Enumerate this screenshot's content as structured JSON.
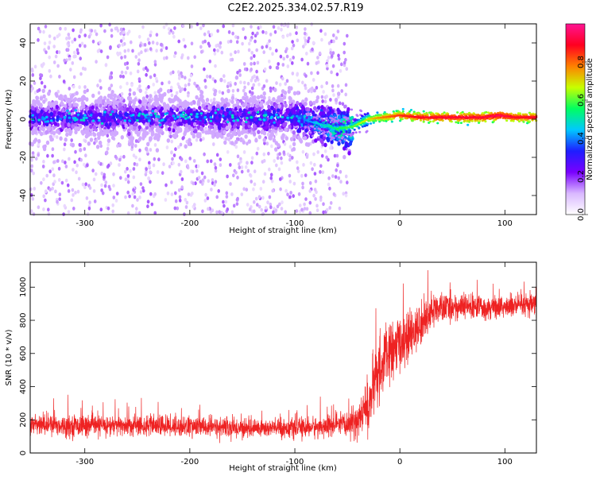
{
  "title": "C2E2.2025.334.02.57.R19",
  "chart_data": [
    {
      "type": "heatmap",
      "xlabel": "Height of straight line (km)",
      "ylabel": "Frequency (Hz)",
      "xlim": [
        -352,
        130
      ],
      "ylim": [
        -50,
        50
      ],
      "xticks": [
        -300,
        -200,
        -100,
        0,
        100
      ],
      "yticks": [
        -40,
        -20,
        0,
        20,
        40
      ],
      "colorbar": {
        "label": "Normalized spectral amplitude",
        "range": [
          0,
          1
        ],
        "ticks": [
          0.0,
          0.2,
          0.4,
          0.6,
          0.8
        ],
        "colors": [
          "#ffffff",
          "#d9b8ff",
          "#7a00ff",
          "#1e1eff",
          "#00c8ff",
          "#00ff60",
          "#c8ff00",
          "#ff8000",
          "#ff0020",
          "#ff1493"
        ]
      },
      "ridge": {
        "x": [
          -352,
          -300,
          -200,
          -100,
          -80,
          -60,
          -45,
          -30,
          -15,
          0,
          20,
          50,
          80,
          95,
          110,
          130
        ],
        "frequency": [
          1,
          1,
          1,
          1,
          -2,
          -5,
          -4,
          0,
          1,
          2,
          1,
          1,
          1,
          2,
          1,
          1
        ],
        "amplitude": [
          0.3,
          0.3,
          0.3,
          0.35,
          0.45,
          0.55,
          0.6,
          0.7,
          0.8,
          0.85,
          0.9,
          0.92,
          0.92,
          0.95,
          0.9,
          0.9
        ]
      }
    },
    {
      "type": "line",
      "xlabel": "Height of straight line (km)",
      "ylabel": "SNR (10 * v/v)",
      "xlim": [
        -352,
        130
      ],
      "ylim": [
        0,
        1150
      ],
      "xticks": [
        -300,
        -200,
        -100,
        0,
        100
      ],
      "yticks": [
        0,
        200,
        400,
        600,
        800,
        1000
      ],
      "series": [
        {
          "color": "#ee2222",
          "x": [
            -352,
            -300,
            -250,
            -200,
            -150,
            -100,
            -70,
            -50,
            -40,
            -30,
            -25,
            -20,
            -15,
            -10,
            0,
            10,
            20,
            30,
            50,
            80,
            100,
            130
          ],
          "y": [
            170,
            165,
            165,
            160,
            150,
            150,
            160,
            170,
            200,
            280,
            400,
            500,
            550,
            600,
            660,
            700,
            770,
            860,
            880,
            880,
            880,
            890
          ],
          "noise": [
            70,
            70,
            70,
            70,
            65,
            65,
            70,
            80,
            120,
            180,
            200,
            220,
            220,
            200,
            180,
            160,
            140,
            110,
            90,
            80,
            80,
            80
          ]
        }
      ]
    }
  ]
}
